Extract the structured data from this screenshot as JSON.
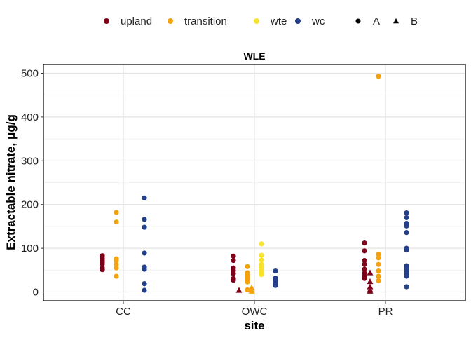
{
  "chart_data": {
    "type": "scatter",
    "title": "WLE",
    "xlabel": "site",
    "ylabel": "Extractable nitrate, μg/g",
    "categories": [
      "CC",
      "OWC",
      "PR"
    ],
    "ylim": [
      -20,
      520
    ],
    "yticks": [
      0,
      100,
      200,
      300,
      400,
      500
    ],
    "grid": true,
    "legend_position": "top",
    "shape_legend": [
      {
        "label": "A",
        "shape": "circle"
      },
      {
        "label": "B",
        "shape": "triangle"
      }
    ],
    "series": [
      {
        "name": "upland",
        "color": "#800019",
        "points": [
          {
            "x": "CC",
            "y": 83,
            "shape": "circle"
          },
          {
            "x": "CC",
            "y": 77,
            "shape": "circle"
          },
          {
            "x": "CC",
            "y": 72,
            "shape": "circle"
          },
          {
            "x": "CC",
            "y": 68,
            "shape": "circle"
          },
          {
            "x": "CC",
            "y": 64,
            "shape": "circle"
          },
          {
            "x": "CC",
            "y": 55,
            "shape": "circle"
          },
          {
            "x": "CC",
            "y": 51,
            "shape": "circle"
          },
          {
            "x": "OWC",
            "y": 82,
            "shape": "circle"
          },
          {
            "x": "OWC",
            "y": 72,
            "shape": "circle"
          },
          {
            "x": "OWC",
            "y": 55,
            "shape": "circle"
          },
          {
            "x": "OWC",
            "y": 49,
            "shape": "circle"
          },
          {
            "x": "OWC",
            "y": 42,
            "shape": "circle"
          },
          {
            "x": "OWC",
            "y": 31,
            "shape": "circle"
          },
          {
            "x": "OWC",
            "y": 27,
            "shape": "circle"
          },
          {
            "x": "OWC",
            "y": 4,
            "shape": "triangle"
          },
          {
            "x": "PR",
            "y": 112,
            "shape": "circle"
          },
          {
            "x": "PR",
            "y": 94,
            "shape": "circle"
          },
          {
            "x": "PR",
            "y": 72,
            "shape": "circle"
          },
          {
            "x": "PR",
            "y": 63,
            "shape": "circle"
          },
          {
            "x": "PR",
            "y": 52,
            "shape": "circle"
          },
          {
            "x": "PR",
            "y": 43,
            "shape": "circle"
          },
          {
            "x": "PR",
            "y": 36,
            "shape": "circle"
          },
          {
            "x": "PR",
            "y": 31,
            "shape": "circle"
          },
          {
            "x": "PR",
            "y": 44,
            "shape": "triangle"
          },
          {
            "x": "PR",
            "y": 24,
            "shape": "triangle"
          },
          {
            "x": "PR",
            "y": 12,
            "shape": "triangle"
          },
          {
            "x": "PR",
            "y": 5,
            "shape": "triangle"
          },
          {
            "x": "PR",
            "y": 2,
            "shape": "triangle"
          }
        ]
      },
      {
        "name": "transition",
        "color": "#f5a20f",
        "points": [
          {
            "x": "CC",
            "y": 182,
            "shape": "circle"
          },
          {
            "x": "CC",
            "y": 160,
            "shape": "circle"
          },
          {
            "x": "CC",
            "y": 76,
            "shape": "circle"
          },
          {
            "x": "CC",
            "y": 71,
            "shape": "circle"
          },
          {
            "x": "CC",
            "y": 63,
            "shape": "circle"
          },
          {
            "x": "CC",
            "y": 55,
            "shape": "circle"
          },
          {
            "x": "CC",
            "y": 36,
            "shape": "circle"
          },
          {
            "x": "OWC",
            "y": 58,
            "shape": "circle"
          },
          {
            "x": "OWC",
            "y": 44,
            "shape": "circle"
          },
          {
            "x": "OWC",
            "y": 39,
            "shape": "circle"
          },
          {
            "x": "OWC",
            "y": 35,
            "shape": "circle"
          },
          {
            "x": "OWC",
            "y": 31,
            "shape": "circle"
          },
          {
            "x": "OWC",
            "y": 27,
            "shape": "circle"
          },
          {
            "x": "OWC",
            "y": 23,
            "shape": "circle"
          },
          {
            "x": "OWC",
            "y": 5,
            "shape": "circle"
          },
          {
            "x": "OWC",
            "y": 10,
            "shape": "triangle"
          },
          {
            "x": "OWC",
            "y": 5,
            "shape": "triangle"
          },
          {
            "x": "OWC",
            "y": 2,
            "shape": "triangle"
          },
          {
            "x": "PR",
            "y": 493,
            "shape": "circle"
          },
          {
            "x": "PR",
            "y": 86,
            "shape": "circle"
          },
          {
            "x": "PR",
            "y": 78,
            "shape": "circle"
          },
          {
            "x": "PR",
            "y": 63,
            "shape": "circle"
          },
          {
            "x": "PR",
            "y": 48,
            "shape": "circle"
          },
          {
            "x": "PR",
            "y": 36,
            "shape": "circle"
          },
          {
            "x": "PR",
            "y": 26,
            "shape": "circle"
          }
        ]
      },
      {
        "name": "wte",
        "color": "#f8e32a",
        "points": [
          {
            "x": "OWC",
            "y": 110,
            "shape": "circle"
          },
          {
            "x": "OWC",
            "y": 84,
            "shape": "circle"
          },
          {
            "x": "OWC",
            "y": 73,
            "shape": "circle"
          },
          {
            "x": "OWC",
            "y": 63,
            "shape": "circle"
          },
          {
            "x": "OWC",
            "y": 56,
            "shape": "circle"
          },
          {
            "x": "OWC",
            "y": 49,
            "shape": "circle"
          },
          {
            "x": "OWC",
            "y": 44,
            "shape": "circle"
          },
          {
            "x": "OWC",
            "y": 40,
            "shape": "circle"
          }
        ]
      },
      {
        "name": "wc",
        "color": "#24408a",
        "points": [
          {
            "x": "CC",
            "y": 215,
            "shape": "circle"
          },
          {
            "x": "CC",
            "y": 166,
            "shape": "circle"
          },
          {
            "x": "CC",
            "y": 148,
            "shape": "circle"
          },
          {
            "x": "CC",
            "y": 89,
            "shape": "circle"
          },
          {
            "x": "CC",
            "y": 57,
            "shape": "circle"
          },
          {
            "x": "CC",
            "y": 52,
            "shape": "circle"
          },
          {
            "x": "CC",
            "y": 19,
            "shape": "circle"
          },
          {
            "x": "CC",
            "y": 4,
            "shape": "circle"
          },
          {
            "x": "OWC",
            "y": 48,
            "shape": "circle"
          },
          {
            "x": "OWC",
            "y": 32,
            "shape": "circle"
          },
          {
            "x": "OWC",
            "y": 26,
            "shape": "circle"
          },
          {
            "x": "OWC",
            "y": 20,
            "shape": "circle"
          },
          {
            "x": "OWC",
            "y": 15,
            "shape": "circle"
          },
          {
            "x": "PR",
            "y": 181,
            "shape": "circle"
          },
          {
            "x": "PR",
            "y": 170,
            "shape": "circle"
          },
          {
            "x": "PR",
            "y": 157,
            "shape": "circle"
          },
          {
            "x": "PR",
            "y": 151,
            "shape": "circle"
          },
          {
            "x": "PR",
            "y": 136,
            "shape": "circle"
          },
          {
            "x": "PR",
            "y": 100,
            "shape": "circle"
          },
          {
            "x": "PR",
            "y": 96,
            "shape": "circle"
          },
          {
            "x": "PR",
            "y": 60,
            "shape": "circle"
          },
          {
            "x": "PR",
            "y": 56,
            "shape": "circle"
          },
          {
            "x": "PR",
            "y": 49,
            "shape": "circle"
          },
          {
            "x": "PR",
            "y": 42,
            "shape": "circle"
          },
          {
            "x": "PR",
            "y": 36,
            "shape": "circle"
          },
          {
            "x": "PR",
            "y": 12,
            "shape": "circle"
          }
        ]
      }
    ]
  }
}
